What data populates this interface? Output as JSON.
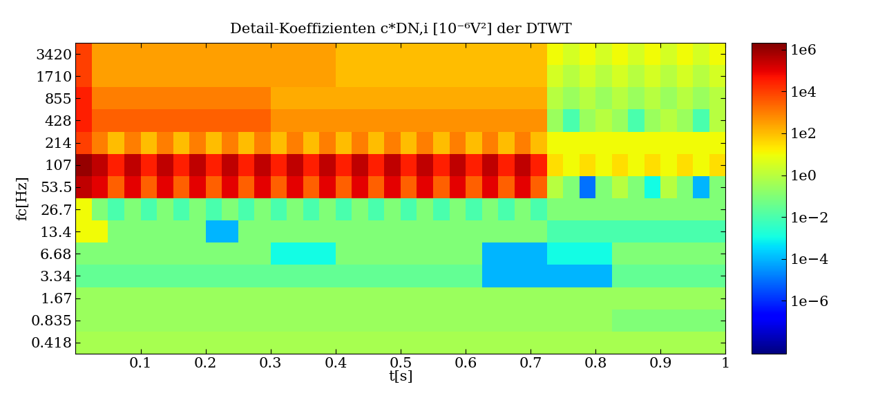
{
  "chart_data": {
    "type": "heatmap",
    "title": "Detail-Koeffizienten c*DN,i [10⁻⁶V²] der DTWT",
    "x_label": "t[s]",
    "y_label": "fc[Hz]",
    "xlim": [
      0,
      1
    ],
    "xticks": [
      0.1,
      0.2,
      0.3,
      0.4,
      0.5,
      0.6,
      0.7,
      0.8,
      0.9,
      1
    ],
    "ylim": [
      0.296,
      4837
    ],
    "yticks": [
      3420,
      1710,
      855,
      428,
      214,
      107,
      53.5,
      26.7,
      13.4,
      6.68,
      3.34,
      1.67,
      0.835,
      0.418
    ],
    "log": "y",
    "color": "jet",
    "x_edges": [
      0,
      0.025,
      0.05,
      0.075,
      0.1,
      0.125,
      0.15,
      0.175,
      0.2,
      0.225,
      0.25,
      0.275,
      0.3,
      0.325,
      0.35,
      0.375,
      0.4,
      0.425,
      0.45,
      0.475,
      0.5,
      0.525,
      0.55,
      0.575,
      0.6,
      0.625,
      0.65,
      0.675,
      0.7,
      0.725,
      0.75,
      0.775,
      0.8,
      0.825,
      0.85,
      0.875,
      0.9,
      0.925,
      0.95,
      0.975,
      1
    ],
    "y_edges": [
      4837,
      2418,
      1209,
      604.6,
      302.3,
      151.1,
      75.6,
      37.8,
      18.9,
      9.45,
      4.72,
      2.36,
      1.18,
      0.59,
      0.296
    ],
    "cells": [
      [
        10000.0,
        300,
        300,
        300,
        300,
        300,
        300,
        300,
        300,
        300,
        300,
        300,
        300,
        300,
        300,
        300,
        100,
        100,
        100,
        100,
        100,
        100,
        100,
        100,
        100,
        100,
        100,
        100,
        100,
        10,
        3,
        10,
        3,
        10,
        3,
        10,
        3,
        10,
        3,
        10
      ],
      [
        10000.0,
        300,
        300,
        300,
        300,
        300,
        300,
        300,
        300,
        300,
        300,
        300,
        300,
        300,
        300,
        300,
        100,
        100,
        100,
        100,
        100,
        100,
        100,
        100,
        100,
        100,
        100,
        100,
        100,
        3,
        1,
        3,
        1,
        3,
        1,
        3,
        1,
        3,
        1,
        3
      ],
      [
        30000.0,
        1000,
        1000,
        1000,
        1000,
        1000,
        1000,
        1000,
        1000,
        1000,
        1000,
        1000,
        200,
        200,
        200,
        200,
        200,
        200,
        200,
        200,
        200,
        200,
        200,
        200,
        200,
        200,
        200,
        200,
        200,
        1,
        0.3,
        1,
        0.3,
        1,
        0.3,
        1,
        0.3,
        1,
        0.3,
        1
      ],
      [
        30000.0,
        3000,
        3000,
        3000,
        3000,
        3000,
        3000,
        3000,
        3000,
        3000,
        3000,
        3000,
        500,
        500,
        500,
        500,
        500,
        500,
        500,
        500,
        500,
        500,
        500,
        500,
        500,
        500,
        500,
        500,
        500,
        0.3,
        0.01,
        0.3,
        1,
        0.3,
        0.01,
        0.3,
        1,
        0.3,
        0.01,
        1
      ],
      [
        10000.0,
        1000,
        100,
        1000,
        100,
        1000,
        100,
        1000,
        100,
        1000,
        100,
        1000,
        100,
        1000,
        100,
        1000,
        100,
        1000,
        100,
        1000,
        100,
        1000,
        100,
        1000,
        100,
        1000,
        100,
        1000,
        100,
        10,
        10,
        10,
        10,
        10,
        10,
        10,
        10,
        10,
        10,
        10
      ],
      [
        1000000.0,
        300000.0,
        30000.0,
        300000.0,
        30000.0,
        300000.0,
        30000.0,
        300000.0,
        30000.0,
        300000.0,
        30000.0,
        300000.0,
        30000.0,
        300000.0,
        30000.0,
        300000.0,
        30000.0,
        300000.0,
        30000.0,
        300000.0,
        30000.0,
        300000.0,
        30000.0,
        300000.0,
        30000.0,
        300000.0,
        30000.0,
        300000.0,
        30000.0,
        30,
        10,
        30,
        10,
        30,
        10,
        30,
        10,
        30,
        10,
        30
      ],
      [
        300000.0,
        100000.0,
        3000.0,
        100000.0,
        3000.0,
        100000.0,
        3000.0,
        100000.0,
        3000.0,
        100000.0,
        3000.0,
        100000.0,
        3000.0,
        100000.0,
        3000.0,
        100000.0,
        3000.0,
        100000.0,
        3000.0,
        100000.0,
        3000.0,
        100000.0,
        3000.0,
        100000.0,
        3000.0,
        100000.0,
        3000.0,
        100000.0,
        3000.0,
        1,
        0.1,
        1e-05,
        0.1,
        1,
        0.1,
        0.001,
        1,
        0.1,
        0.0001,
        0.1
      ],
      [
        10,
        0.1,
        0.01,
        0.1,
        0.01,
        0.1,
        0.01,
        0.1,
        0.01,
        0.1,
        0.01,
        0.1,
        0.01,
        0.1,
        0.01,
        0.1,
        0.01,
        0.1,
        0.01,
        0.1,
        0.01,
        0.1,
        0.01,
        0.1,
        0.01,
        0.1,
        0.01,
        0.1,
        0.01,
        0.1,
        0.1,
        0.1,
        0.1,
        0.1,
        0.1,
        0.1,
        0.1,
        0.1,
        0.1,
        0.1
      ],
      [
        10,
        10,
        0.1,
        0.1,
        0.1,
        0.1,
        0.1,
        0.1,
        0.0001,
        0.0001,
        0.1,
        0.1,
        0.1,
        0.1,
        0.1,
        0.1,
        0.1,
        0.1,
        0.1,
        0.1,
        0.1,
        0.1,
        0.1,
        0.1,
        0.1,
        0.1,
        0.1,
        0.1,
        0.1,
        0.01,
        0.01,
        0.01,
        0.01,
        0.01,
        0.01,
        0.01,
        0.01,
        0.01,
        0.01,
        0.01
      ],
      [
        0.1,
        0.1,
        0.1,
        0.1,
        0.1,
        0.1,
        0.1,
        0.1,
        0.1,
        0.1,
        0.1,
        0.1,
        0.001,
        0.001,
        0.001,
        0.001,
        0.1,
        0.1,
        0.1,
        0.1,
        0.1,
        0.1,
        0.1,
        0.1,
        0.1,
        0.0001,
        0.0001,
        0.0001,
        0.0001,
        0.001,
        0.001,
        0.001,
        0.001,
        0.1,
        0.1,
        0.1,
        0.1,
        0.1,
        0.1,
        0.1
      ],
      [
        0.03,
        0.03,
        0.03,
        0.03,
        0.03,
        0.03,
        0.03,
        0.03,
        0.03,
        0.03,
        0.03,
        0.03,
        0.03,
        0.03,
        0.03,
        0.03,
        0.03,
        0.03,
        0.03,
        0.03,
        0.03,
        0.03,
        0.03,
        0.03,
        0.03,
        0.0001,
        0.0001,
        0.0001,
        0.0001,
        0.0001,
        0.0001,
        0.0001,
        0.0001,
        0.03,
        0.03,
        0.03,
        0.03,
        0.03,
        0.03,
        0.03
      ],
      [
        0.3,
        0.3,
        0.3,
        0.3,
        0.3,
        0.3,
        0.3,
        0.3,
        0.3,
        0.3,
        0.3,
        0.3,
        0.3,
        0.3,
        0.3,
        0.3,
        0.3,
        0.3,
        0.3,
        0.3,
        0.3,
        0.3,
        0.3,
        0.3,
        0.3,
        0.3,
        0.3,
        0.3,
        0.3,
        0.3,
        0.3,
        0.3,
        0.3,
        0.3,
        0.3,
        0.3,
        0.3,
        0.3,
        0.3,
        0.3
      ],
      [
        0.3,
        0.3,
        0.3,
        0.3,
        0.3,
        0.3,
        0.3,
        0.3,
        0.3,
        0.3,
        0.3,
        0.3,
        0.3,
        0.3,
        0.3,
        0.3,
        0.3,
        0.3,
        0.3,
        0.3,
        0.3,
        0.3,
        0.3,
        0.3,
        0.3,
        0.3,
        0.3,
        0.3,
        0.3,
        0.3,
        0.3,
        0.3,
        0.3,
        0.1,
        0.1,
        0.1,
        0.1,
        0.1,
        0.1,
        0.1
      ],
      [
        0.5,
        0.5,
        0.5,
        0.5,
        0.5,
        0.5,
        0.5,
        0.5,
        0.5,
        0.5,
        0.5,
        0.5,
        0.5,
        0.5,
        0.5,
        0.5,
        0.5,
        0.5,
        0.5,
        0.5,
        0.5,
        0.5,
        0.5,
        0.5,
        0.5,
        0.5,
        0.5,
        0.5,
        0.5,
        0.5,
        0.5,
        0.5,
        0.5,
        0.5,
        0.5,
        0.5,
        0.5,
        0.5,
        0.5,
        0.5
      ]
    ],
    "colorbar_range": [
      3e-09,
      2100000.0
    ],
    "colorbar_ticks": [
      {
        "value": 1000000.0,
        "label": "1e6"
      },
      {
        "value": 10000.0,
        "label": "1e4"
      },
      {
        "value": 100.0,
        "label": "1e2"
      },
      {
        "value": 1,
        "label": "1e0"
      },
      {
        "value": 0.01,
        "label": "1e−2"
      },
      {
        "value": 0.0001,
        "label": "1e−4"
      },
      {
        "value": 1e-06,
        "label": "1e−6"
      }
    ]
  }
}
